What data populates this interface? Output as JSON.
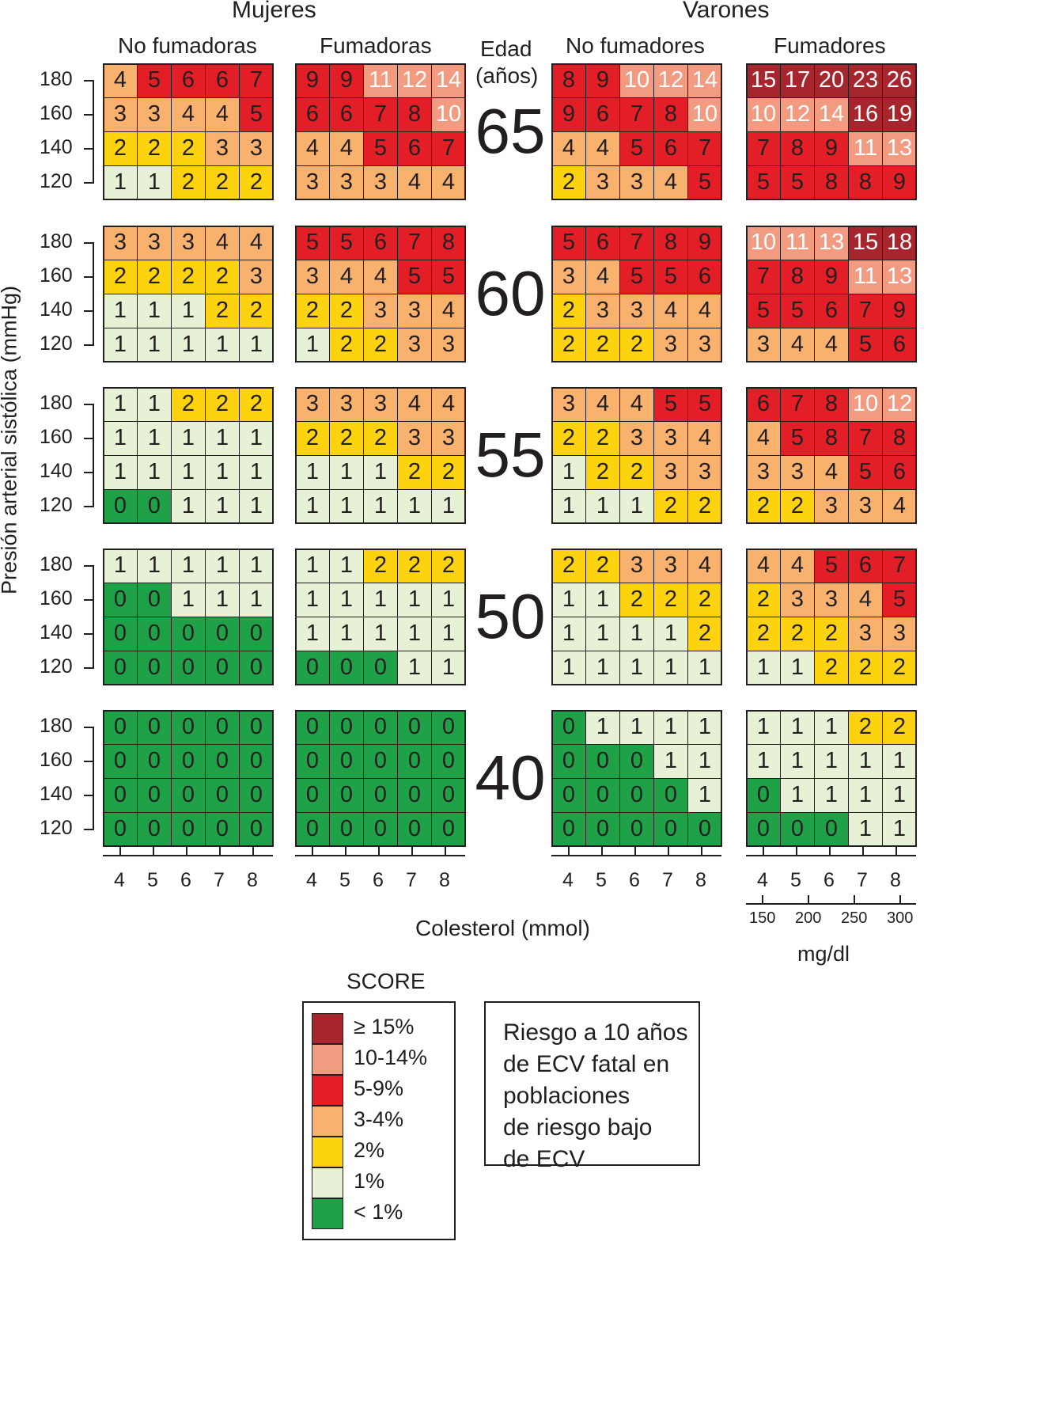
{
  "headers": {
    "women": "Mujeres",
    "men": "Varones",
    "women_nonsmokers": "No fumadoras",
    "women_smokers": "Fumadoras",
    "age_line1": "Edad",
    "age_line2": "(años)",
    "men_nonsmokers": "No fumadores",
    "men_smokers": "Fumadores",
    "y_axis_label": "Presión arterial sistólica (mmHg)",
    "x_axis_label": "Colesterol (mmol)",
    "mgdl_label": "mg/dl"
  },
  "legend": {
    "title": "SCORE",
    "items": [
      {
        "label": "≥ 15%",
        "color": "#a7262e"
      },
      {
        "label": "10-14%",
        "color": "#f29b81"
      },
      {
        "label": "5-9%",
        "color": "#e31e26"
      },
      {
        "label": "3-4%",
        "color": "#f9b16e"
      },
      {
        "label": "2%",
        "color": "#fdd20e"
      },
      {
        "label": "1%",
        "color": "#e7f1d5"
      },
      {
        "label": "< 1%",
        "color": "#1fa148"
      }
    ]
  },
  "info_box": {
    "lines": [
      "Riesgo a 10 años",
      "de ECV fatal en",
      "poblaciones",
      "de riesgo bajo",
      "de ECV"
    ]
  },
  "chart_data": {
    "type": "heatmap",
    "title": "",
    "x_axis": {
      "label": "Colesterol (mmol)",
      "values": [
        "4",
        "5",
        "6",
        "7",
        "8"
      ]
    },
    "x_axis_secondary": {
      "label": "mg/dl",
      "values": [
        "150",
        "200",
        "250",
        "300"
      ]
    },
    "y_axis": {
      "label": "Presión arterial sistólica (mmHg)",
      "values": [
        "180",
        "160",
        "140",
        "120"
      ]
    },
    "ages": [
      "65",
      "60",
      "55",
      "50",
      "40"
    ],
    "panels": [
      {
        "name": "Mujeres No fumadoras",
        "rows": [
          [
            [
              4,
              5,
              6,
              6,
              7
            ],
            [
              3,
              3,
              4,
              4,
              5
            ],
            [
              2,
              2,
              2,
              3,
              3
            ],
            [
              1,
              1,
              2,
              2,
              2
            ]
          ],
          [
            [
              3,
              3,
              3,
              4,
              4
            ],
            [
              2,
              2,
              2,
              2,
              3
            ],
            [
              1,
              1,
              1,
              2,
              2
            ],
            [
              1,
              1,
              1,
              1,
              1
            ]
          ],
          [
            [
              1,
              1,
              2,
              2,
              2
            ],
            [
              1,
              1,
              1,
              1,
              1
            ],
            [
              1,
              1,
              1,
              1,
              1
            ],
            [
              0,
              0,
              1,
              1,
              1
            ]
          ],
          [
            [
              1,
              1,
              1,
              1,
              1
            ],
            [
              0,
              0,
              1,
              1,
              1
            ],
            [
              0,
              0,
              0,
              0,
              0
            ],
            [
              0,
              0,
              0,
              0,
              0
            ]
          ],
          [
            [
              0,
              0,
              0,
              0,
              0
            ],
            [
              0,
              0,
              0,
              0,
              0
            ],
            [
              0,
              0,
              0,
              0,
              0
            ],
            [
              0,
              0,
              0,
              0,
              0
            ]
          ]
        ]
      },
      {
        "name": "Mujeres Fumadoras",
        "rows": [
          [
            [
              9,
              9,
              11,
              12,
              14
            ],
            [
              6,
              6,
              7,
              8,
              10
            ],
            [
              4,
              4,
              5,
              6,
              7
            ],
            [
              3,
              3,
              3,
              4,
              4
            ]
          ],
          [
            [
              5,
              5,
              6,
              7,
              8
            ],
            [
              3,
              4,
              4,
              5,
              5
            ],
            [
              2,
              2,
              3,
              3,
              4
            ],
            [
              1,
              2,
              2,
              3,
              3
            ]
          ],
          [
            [
              3,
              3,
              3,
              4,
              4
            ],
            [
              2,
              2,
              2,
              3,
              3
            ],
            [
              1,
              1,
              1,
              2,
              2
            ],
            [
              1,
              1,
              1,
              1,
              1
            ]
          ],
          [
            [
              1,
              1,
              2,
              2,
              2
            ],
            [
              1,
              1,
              1,
              1,
              1
            ],
            [
              1,
              1,
              1,
              1,
              1
            ],
            [
              0,
              0,
              0,
              1,
              1
            ]
          ],
          [
            [
              0,
              0,
              0,
              0,
              0
            ],
            [
              0,
              0,
              0,
              0,
              0
            ],
            [
              0,
              0,
              0,
              0,
              0
            ],
            [
              0,
              0,
              0,
              0,
              0
            ]
          ]
        ]
      },
      {
        "name": "Varones No fumadores",
        "rows": [
          [
            [
              8,
              9,
              10,
              12,
              14
            ],
            [
              9,
              6,
              7,
              8,
              10
            ],
            [
              4,
              4,
              5,
              6,
              7
            ],
            [
              2,
              3,
              3,
              4,
              5
            ]
          ],
          [
            [
              5,
              6,
              7,
              8,
              9
            ],
            [
              3,
              4,
              5,
              5,
              6
            ],
            [
              2,
              3,
              3,
              4,
              4
            ],
            [
              2,
              2,
              2,
              3,
              3
            ]
          ],
          [
            [
              3,
              4,
              4,
              5,
              5
            ],
            [
              2,
              2,
              3,
              3,
              4
            ],
            [
              1,
              2,
              2,
              3,
              3
            ],
            [
              1,
              1,
              1,
              2,
              2
            ]
          ],
          [
            [
              2,
              2,
              3,
              3,
              4
            ],
            [
              1,
              1,
              2,
              2,
              2
            ],
            [
              1,
              1,
              1,
              1,
              2
            ],
            [
              1,
              1,
              1,
              1,
              1
            ]
          ],
          [
            [
              0,
              1,
              1,
              1,
              1
            ],
            [
              0,
              0,
              0,
              1,
              1
            ],
            [
              0,
              0,
              0,
              0,
              1
            ],
            [
              0,
              0,
              0,
              0,
              0
            ]
          ]
        ]
      },
      {
        "name": "Varones Fumadores",
        "rows": [
          [
            [
              15,
              17,
              20,
              23,
              26
            ],
            [
              10,
              12,
              14,
              16,
              19
            ],
            [
              7,
              8,
              9,
              11,
              13
            ],
            [
              5,
              5,
              8,
              8,
              9
            ]
          ],
          [
            [
              10,
              11,
              13,
              15,
              18
            ],
            [
              7,
              8,
              9,
              11,
              13
            ],
            [
              5,
              5,
              6,
              7,
              9
            ],
            [
              3,
              4,
              4,
              5,
              6
            ]
          ],
          [
            [
              6,
              7,
              8,
              10,
              12
            ],
            [
              4,
              5,
              8,
              7,
              8
            ],
            [
              3,
              3,
              4,
              5,
              6
            ],
            [
              2,
              2,
              3,
              3,
              4
            ]
          ],
          [
            [
              4,
              4,
              5,
              6,
              7
            ],
            [
              2,
              3,
              3,
              4,
              5
            ],
            [
              2,
              2,
              2,
              3,
              3
            ],
            [
              1,
              1,
              2,
              2,
              2
            ]
          ],
          [
            [
              1,
              1,
              1,
              2,
              2
            ],
            [
              1,
              1,
              1,
              1,
              1
            ],
            [
              0,
              1,
              1,
              1,
              1
            ],
            [
              0,
              0,
              0,
              1,
              1
            ]
          ]
        ]
      }
    ]
  }
}
